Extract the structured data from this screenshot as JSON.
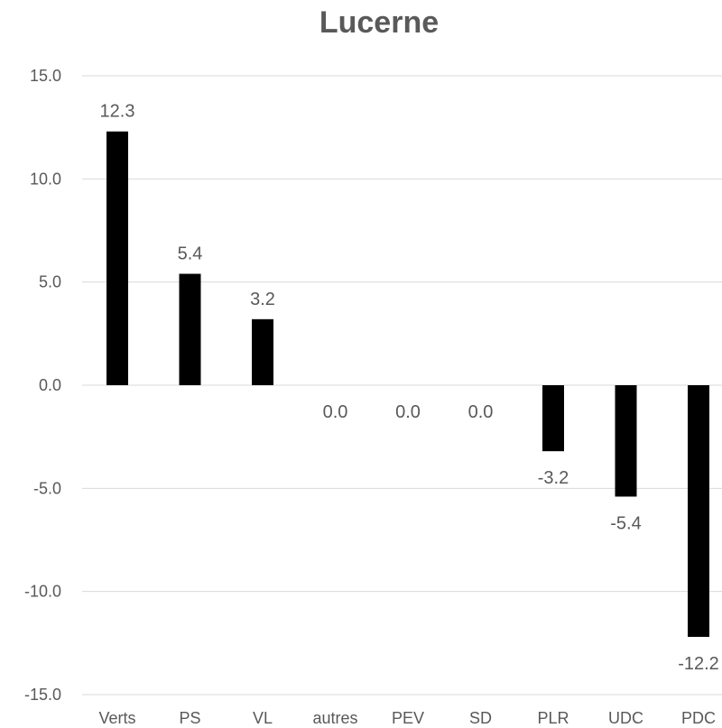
{
  "chart_data": {
    "type": "bar",
    "title": "Lucerne",
    "categories": [
      "Verts",
      "PS",
      "VL",
      "autres",
      "PEV",
      "SD",
      "PLR",
      "UDC",
      "PDC"
    ],
    "values": [
      12.3,
      5.4,
      3.2,
      0.0,
      0.0,
      0.0,
      -3.2,
      -5.4,
      -12.2
    ],
    "value_labels": [
      "12.3",
      "5.4",
      "3.2",
      "0.0",
      "0.0",
      "0.0",
      "-3.2",
      "-5.4",
      "-12.2"
    ],
    "yticks": [
      "15.0",
      "10.0",
      "5.0",
      "0.0",
      "-5.0",
      "-10.0",
      "-15.0"
    ],
    "ytick_values": [
      15,
      10,
      5,
      0,
      -5,
      -10,
      -15
    ],
    "ylim": [
      -15,
      15
    ],
    "grid": true,
    "legend": "none",
    "bar_color": "#000000",
    "xlabel": "",
    "ylabel": ""
  }
}
